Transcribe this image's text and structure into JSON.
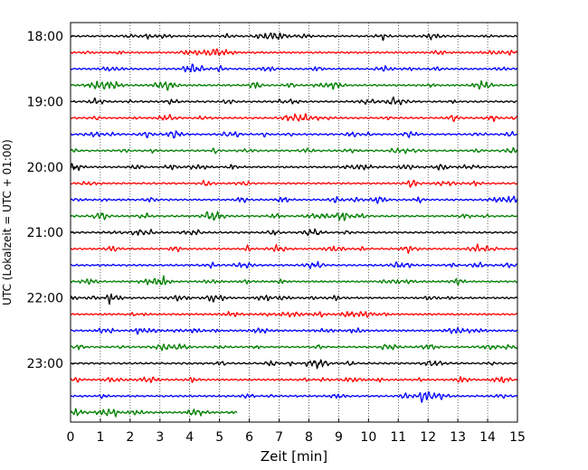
{
  "chart_data": {
    "type": "line",
    "title": "",
    "xlabel": "Zeit  [min]",
    "ylabel": "UTC (Lokalzeit = UTC + 01:00)",
    "xlim": [
      0,
      15
    ],
    "x_ticks": [
      "0",
      "1",
      "2",
      "3",
      "4",
      "5",
      "6",
      "7",
      "8",
      "9",
      "10",
      "11",
      "12",
      "13",
      "14",
      "15"
    ],
    "y_ticks": [
      "18:00",
      "19:00",
      "20:00",
      "21:00",
      "22:00",
      "23:00"
    ],
    "vertical_grid": true,
    "grid_style": "dotted",
    "trace_interval_minutes": 15,
    "start_time_utc": "18:00",
    "color_cycle": [
      "#000000",
      "#ff0000",
      "#0000ff",
      "#008000"
    ],
    "traces": [
      {
        "time": "18:00",
        "duration_min": 15
      },
      {
        "time": "18:15",
        "duration_min": 15
      },
      {
        "time": "18:30",
        "duration_min": 15
      },
      {
        "time": "18:45",
        "duration_min": 15
      },
      {
        "time": "19:00",
        "duration_min": 15
      },
      {
        "time": "19:15",
        "duration_min": 15
      },
      {
        "time": "19:30",
        "duration_min": 15
      },
      {
        "time": "19:45",
        "duration_min": 15
      },
      {
        "time": "20:00",
        "duration_min": 15
      },
      {
        "time": "20:15",
        "duration_min": 15
      },
      {
        "time": "20:30",
        "duration_min": 15
      },
      {
        "time": "20:45",
        "duration_min": 15
      },
      {
        "time": "21:00",
        "duration_min": 15
      },
      {
        "time": "21:15",
        "duration_min": 15
      },
      {
        "time": "21:30",
        "duration_min": 15
      },
      {
        "time": "21:45",
        "duration_min": 15
      },
      {
        "time": "22:00",
        "duration_min": 15
      },
      {
        "time": "22:15",
        "duration_min": 15
      },
      {
        "time": "22:30",
        "duration_min": 15
      },
      {
        "time": "22:45",
        "duration_min": 15
      },
      {
        "time": "23:00",
        "duration_min": 15
      },
      {
        "time": "23:15",
        "duration_min": 15
      },
      {
        "time": "23:30",
        "duration_min": 15
      },
      {
        "time": "23:45",
        "duration_min": 5.6
      }
    ]
  }
}
